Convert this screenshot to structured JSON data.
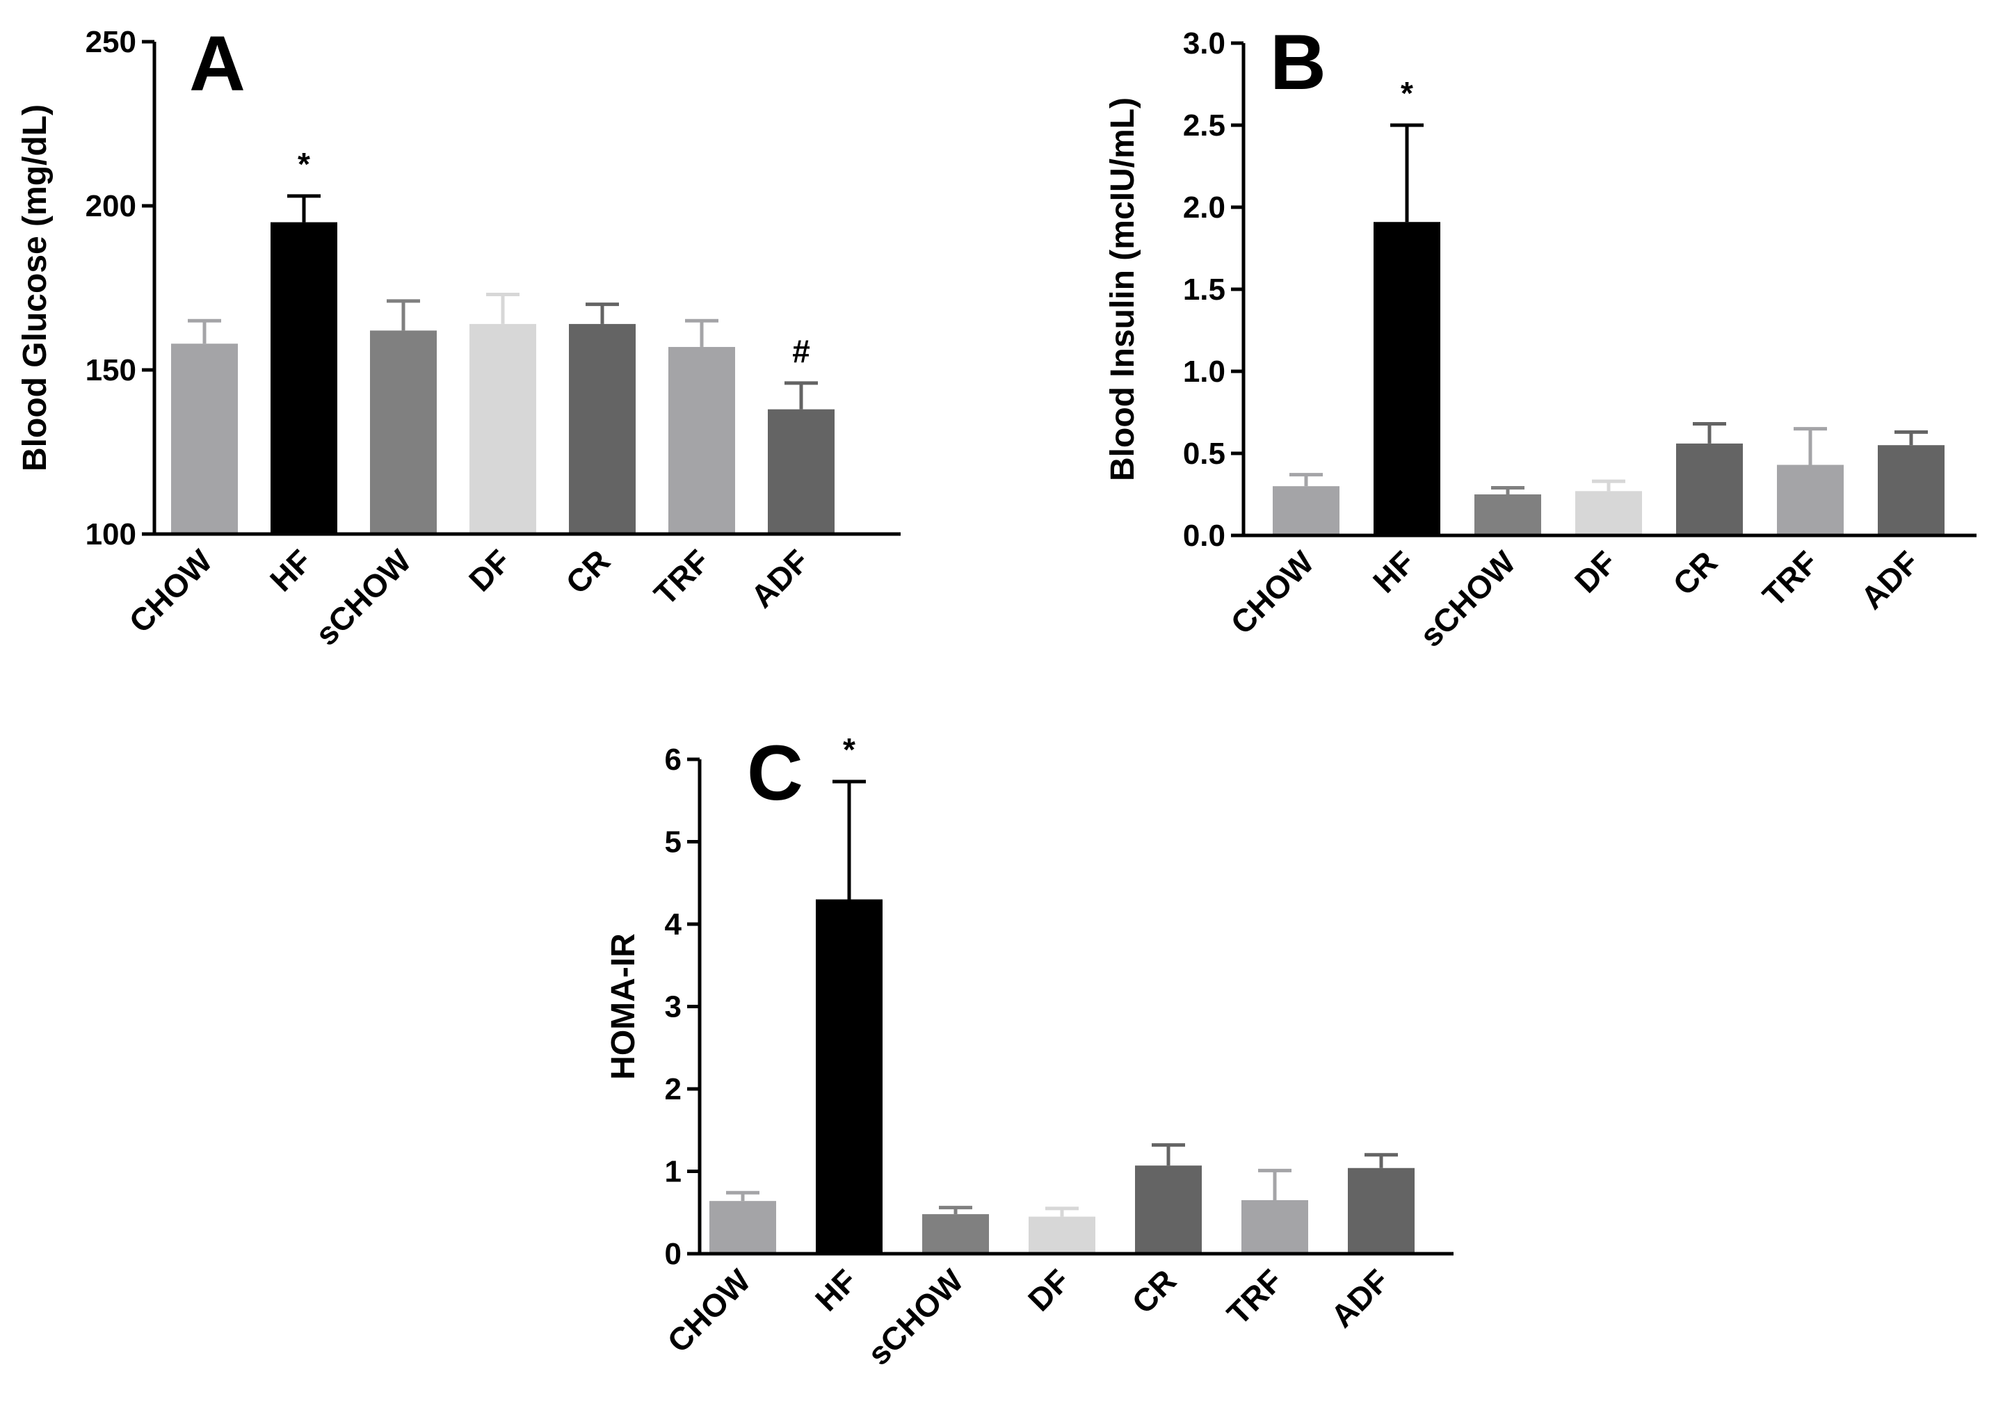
{
  "chart_data": [
    {
      "type": "bar",
      "panel_label": "A",
      "categories": [
        "CHOW",
        "HF",
        "sCHOW",
        "DF",
        "CR",
        "TRF",
        "ADF"
      ],
      "values": [
        158,
        195,
        162,
        164,
        164,
        157,
        138
      ],
      "errors": [
        7,
        8,
        9,
        9,
        6,
        8,
        8
      ],
      "annotations": [
        "",
        "*",
        "",
        "",
        "",
        "",
        "#"
      ],
      "ylabel": "Blood Glucose (mg/dL)",
      "xlabel": "",
      "ylim": [
        100,
        250
      ],
      "yticks": [
        "100",
        "150",
        "200",
        "250"
      ],
      "ytick_values": [
        100,
        150,
        200,
        250
      ]
    },
    {
      "type": "bar",
      "panel_label": "B",
      "categories": [
        "CHOW",
        "HF",
        "sCHOW",
        "DF",
        "CR",
        "TRF",
        "ADF"
      ],
      "values": [
        0.3,
        1.91,
        0.25,
        0.27,
        0.56,
        0.43,
        0.55
      ],
      "errors": [
        0.07,
        0.59,
        0.04,
        0.06,
        0.12,
        0.22,
        0.08
      ],
      "annotations": [
        "",
        "*",
        "",
        "",
        "",
        "",
        ""
      ],
      "ylabel": "Blood Insulin (mcIU/mL)",
      "xlabel": "",
      "ylim": [
        0,
        3.0
      ],
      "yticks": [
        "0.0",
        "0.5",
        "1.0",
        "1.5",
        "2.0",
        "2.5",
        "3.0"
      ],
      "ytick_values": [
        0,
        0.5,
        1.0,
        1.5,
        2.0,
        2.5,
        3.0
      ]
    },
    {
      "type": "bar",
      "panel_label": "C",
      "categories": [
        "CHOW",
        "HF",
        "sCHOW",
        "DF",
        "CR",
        "TRF",
        "ADF"
      ],
      "values": [
        0.64,
        4.3,
        0.48,
        0.45,
        1.07,
        0.65,
        1.04
      ],
      "errors": [
        0.1,
        1.43,
        0.08,
        0.1,
        0.25,
        0.36,
        0.16
      ],
      "annotations": [
        "",
        "*",
        "",
        "",
        "",
        "",
        ""
      ],
      "ylabel": "HOMA-IR",
      "xlabel": "",
      "ylim": [
        0,
        6
      ],
      "yticks": [
        "0",
        "1",
        "2",
        "3",
        "4",
        "5",
        "6"
      ],
      "ytick_values": [
        0,
        1,
        2,
        3,
        4,
        5,
        6
      ]
    }
  ],
  "colors": {
    "CHOW": "#a4a4a7",
    "HF": "#000000",
    "sCHOW": "#808080",
    "DF": "#d7d7d7",
    "CR": "#646464",
    "TRF": "#a4a4a7",
    "ADF": "#646464",
    "axis": "#000000"
  }
}
